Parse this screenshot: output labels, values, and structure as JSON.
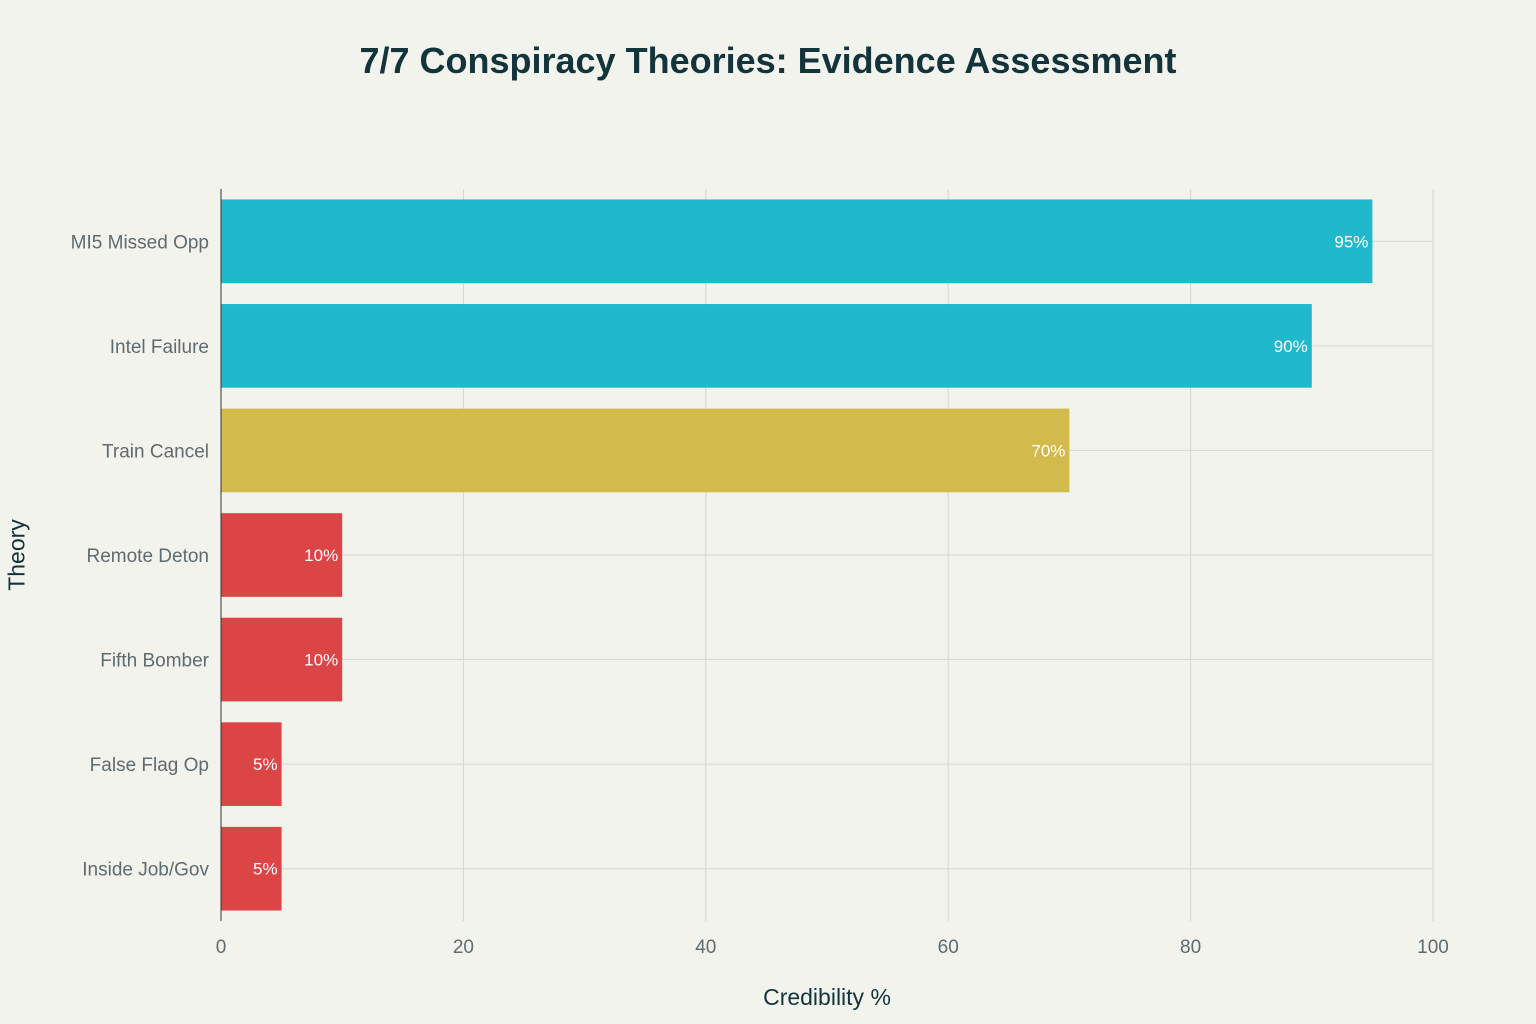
{
  "chart_data": {
    "type": "bar",
    "orientation": "horizontal",
    "title": "7/7 Conspiracy Theories: Evidence Assessment",
    "xlabel": "Credibility %",
    "ylabel": "Theory",
    "xlim": [
      0,
      100
    ],
    "xticks": [
      0,
      20,
      40,
      60,
      80,
      100
    ],
    "grid": true,
    "categories": [
      "MI5 Missed Opp",
      "Intel Failure",
      "Train Cancel",
      "Remote Deton",
      "Fifth Bomber",
      "False Flag Op",
      "Inside Job/Gov"
    ],
    "values": [
      95,
      90,
      70,
      10,
      10,
      5,
      5
    ],
    "data_labels": [
      "95%",
      "90%",
      "70%",
      "10%",
      "10%",
      "5%",
      "5%"
    ],
    "colors": [
      "#1FB8CD",
      "#1FB8CD",
      "#D2BA4C",
      "#DB4545",
      "#DB4545",
      "#DB4545",
      "#DB4545"
    ]
  }
}
